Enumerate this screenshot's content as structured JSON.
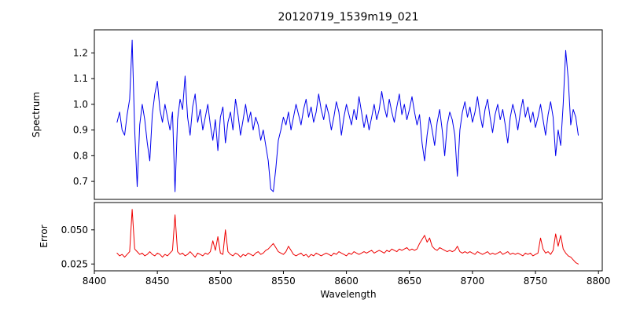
{
  "chart_data": {
    "type": "line",
    "title": "20120719_1539m19_021",
    "xlabel": "Wavelength",
    "xlim": [
      8400,
      8803
    ],
    "x_start": 8418,
    "x_step": 2,
    "xtick_values": [
      8400,
      8450,
      8500,
      8550,
      8600,
      8650,
      8700,
      8750,
      8800
    ],
    "xtick_labels": [
      "8400",
      "8450",
      "8500",
      "8550",
      "8600",
      "8650",
      "8700",
      "8750",
      "8800"
    ],
    "legend": "none",
    "grid": false,
    "panels": [
      {
        "name": "spectrum",
        "ylabel": "Spectrum",
        "color": "#0000ee",
        "ylim": [
          0.63,
          1.29
        ],
        "ytick_values": [
          0.7,
          0.8,
          0.9,
          1.0,
          1.1,
          1.2
        ],
        "ytick_labels": [
          "0.7",
          "0.8",
          "0.9",
          "1.0",
          "1.1",
          "1.2"
        ],
        "values": [
          0.93,
          0.97,
          0.9,
          0.88,
          0.96,
          1.02,
          1.25,
          0.9,
          0.68,
          0.92,
          1.0,
          0.94,
          0.85,
          0.78,
          0.96,
          1.04,
          1.09,
          0.98,
          0.93,
          1.0,
          0.95,
          0.9,
          0.97,
          0.66,
          0.94,
          1.02,
          0.98,
          1.11,
          0.95,
          0.88,
          0.99,
          1.04,
          0.93,
          0.98,
          0.9,
          0.95,
          1.0,
          0.92,
          0.86,
          0.94,
          0.82,
          0.95,
          0.99,
          0.85,
          0.93,
          0.97,
          0.9,
          1.02,
          0.96,
          0.88,
          0.94,
          1.0,
          0.93,
          0.97,
          0.9,
          0.95,
          0.92,
          0.86,
          0.9,
          0.84,
          0.78,
          0.67,
          0.66,
          0.75,
          0.86,
          0.9,
          0.95,
          0.92,
          0.97,
          0.9,
          0.95,
          1.0,
          0.96,
          0.92,
          0.98,
          1.02,
          0.95,
          0.99,
          0.93,
          0.97,
          1.04,
          0.98,
          0.94,
          1.0,
          0.96,
          0.9,
          0.95,
          1.01,
          0.97,
          0.88,
          0.95,
          1.0,
          0.96,
          0.92,
          0.98,
          0.94,
          1.03,
          0.97,
          0.91,
          0.96,
          0.9,
          0.95,
          1.0,
          0.94,
          0.98,
          1.05,
          0.99,
          0.95,
          1.02,
          0.97,
          0.93,
          0.99,
          1.04,
          0.96,
          1.0,
          0.94,
          0.98,
          1.03,
          0.97,
          0.92,
          0.96,
          0.85,
          0.78,
          0.88,
          0.95,
          0.9,
          0.84,
          0.93,
          0.98,
          0.9,
          0.8,
          0.92,
          0.97,
          0.94,
          0.88,
          0.72,
          0.9,
          0.97,
          1.01,
          0.95,
          0.99,
          0.93,
          0.97,
          1.03,
          0.96,
          0.91,
          0.98,
          1.02,
          0.95,
          0.89,
          0.96,
          1.0,
          0.94,
          0.98,
          0.92,
          0.85,
          0.95,
          1.0,
          0.96,
          0.9,
          0.97,
          1.02,
          0.95,
          0.99,
          0.93,
          0.97,
          0.91,
          0.95,
          1.0,
          0.94,
          0.88,
          0.96,
          1.01,
          0.95,
          0.8,
          0.9,
          0.84,
          1.0,
          1.21,
          1.1,
          0.92,
          0.98,
          0.95,
          0.88
        ]
      },
      {
        "name": "error",
        "ylabel": "Error",
        "color": "#ee0000",
        "ylim": [
          0.02,
          0.07
        ],
        "ytick_values": [
          0.025,
          0.05
        ],
        "ytick_labels": [
          "0.025",
          "0.050"
        ],
        "values": [
          0.033,
          0.031,
          0.032,
          0.03,
          0.032,
          0.034,
          0.065,
          0.036,
          0.034,
          0.032,
          0.033,
          0.031,
          0.032,
          0.034,
          0.032,
          0.031,
          0.033,
          0.032,
          0.03,
          0.032,
          0.031,
          0.033,
          0.035,
          0.061,
          0.034,
          0.032,
          0.033,
          0.031,
          0.032,
          0.034,
          0.032,
          0.03,
          0.033,
          0.032,
          0.031,
          0.033,
          0.032,
          0.034,
          0.042,
          0.035,
          0.045,
          0.033,
          0.032,
          0.05,
          0.034,
          0.032,
          0.031,
          0.033,
          0.032,
          0.03,
          0.032,
          0.031,
          0.033,
          0.032,
          0.031,
          0.033,
          0.034,
          0.032,
          0.033,
          0.035,
          0.036,
          0.038,
          0.04,
          0.037,
          0.034,
          0.033,
          0.032,
          0.034,
          0.038,
          0.035,
          0.032,
          0.031,
          0.032,
          0.033,
          0.031,
          0.032,
          0.03,
          0.032,
          0.031,
          0.033,
          0.032,
          0.031,
          0.032,
          0.033,
          0.032,
          0.031,
          0.033,
          0.032,
          0.034,
          0.033,
          0.032,
          0.031,
          0.033,
          0.032,
          0.034,
          0.033,
          0.032,
          0.033,
          0.034,
          0.033,
          0.034,
          0.035,
          0.033,
          0.034,
          0.035,
          0.034,
          0.033,
          0.035,
          0.034,
          0.036,
          0.035,
          0.034,
          0.036,
          0.035,
          0.036,
          0.037,
          0.035,
          0.036,
          0.035,
          0.036,
          0.04,
          0.043,
          0.046,
          0.041,
          0.044,
          0.038,
          0.036,
          0.035,
          0.037,
          0.036,
          0.035,
          0.034,
          0.035,
          0.034,
          0.035,
          0.038,
          0.034,
          0.033,
          0.034,
          0.033,
          0.034,
          0.033,
          0.032,
          0.034,
          0.033,
          0.032,
          0.033,
          0.034,
          0.032,
          0.033,
          0.032,
          0.033,
          0.034,
          0.032,
          0.033,
          0.034,
          0.032,
          0.033,
          0.032,
          0.033,
          0.032,
          0.031,
          0.033,
          0.032,
          0.033,
          0.031,
          0.032,
          0.033,
          0.044,
          0.036,
          0.033,
          0.034,
          0.032,
          0.035,
          0.047,
          0.038,
          0.046,
          0.036,
          0.033,
          0.031,
          0.03,
          0.028,
          0.026,
          0.025
        ]
      }
    ]
  }
}
